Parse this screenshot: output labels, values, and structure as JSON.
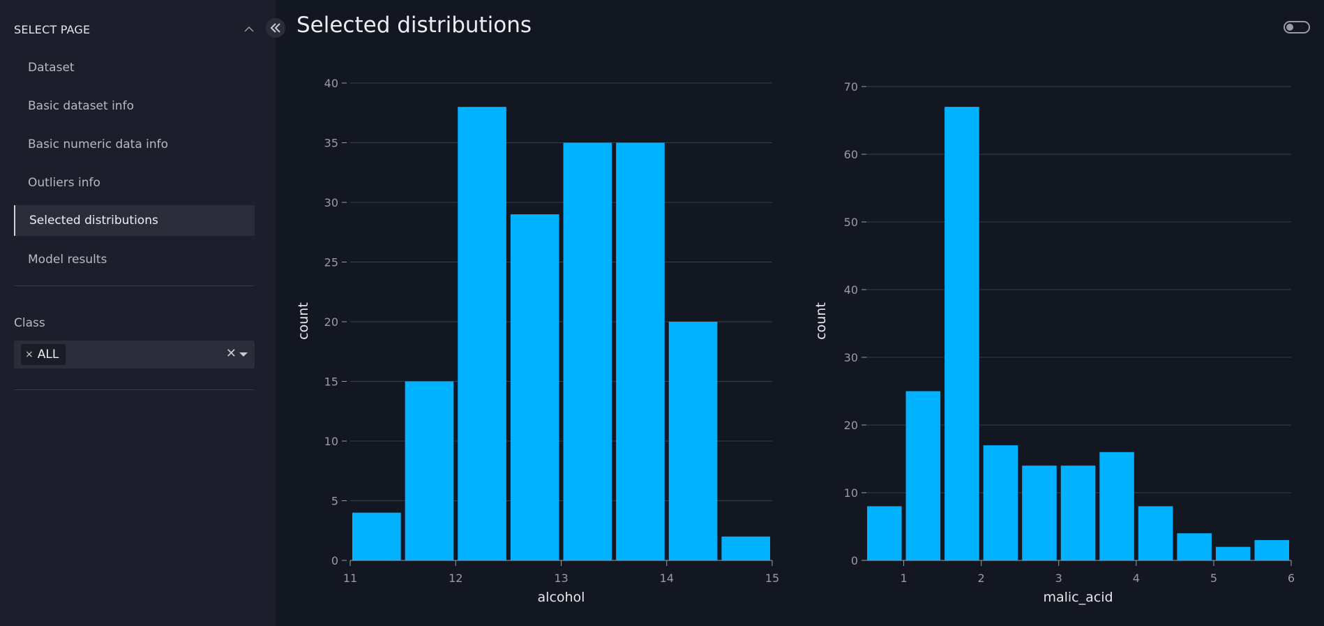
{
  "sidebar": {
    "header": "SELECT PAGE",
    "items": [
      {
        "label": "Dataset"
      },
      {
        "label": "Basic dataset info"
      },
      {
        "label": "Basic numeric data info"
      },
      {
        "label": "Outliers info"
      },
      {
        "label": "Selected distributions",
        "active": true
      },
      {
        "label": "Model results"
      }
    ],
    "filter": {
      "label": "Class",
      "chip": "ALL"
    }
  },
  "main": {
    "title": "Selected distributions"
  },
  "colors": {
    "bar": "#00b2ff",
    "grid": "#3a3d4a",
    "tick_text": "#9a9ca4",
    "axis_title": "#e6e7ea"
  },
  "chart_data": [
    {
      "type": "bar",
      "xlabel": "alcohol",
      "ylabel": "count",
      "xlim": [
        11,
        15
      ],
      "ylim": [
        0,
        40
      ],
      "xticks": [
        11,
        12,
        13,
        14,
        15
      ],
      "yticks": [
        0,
        5,
        10,
        15,
        20,
        25,
        30,
        35,
        40
      ],
      "bin_edges": [
        11,
        11.5,
        12,
        12.5,
        13,
        13.5,
        14,
        14.5,
        15
      ],
      "values": [
        4,
        15,
        38,
        29,
        35,
        35,
        20,
        2
      ]
    },
    {
      "type": "bar",
      "xlabel": "malic_acid",
      "ylabel": "count",
      "xlim": [
        0.5,
        6
      ],
      "ylim": [
        0,
        70
      ],
      "xticks": [
        1,
        2,
        3,
        4,
        5,
        6
      ],
      "yticks": [
        0,
        10,
        20,
        30,
        40,
        50,
        60,
        70
      ],
      "bin_edges": [
        0.5,
        1,
        1.5,
        2,
        2.5,
        3,
        3.5,
        4,
        4.5,
        5,
        5.5,
        6
      ],
      "values": [
        8,
        25,
        67,
        17,
        14,
        14,
        16,
        8,
        4,
        2,
        3
      ]
    }
  ]
}
